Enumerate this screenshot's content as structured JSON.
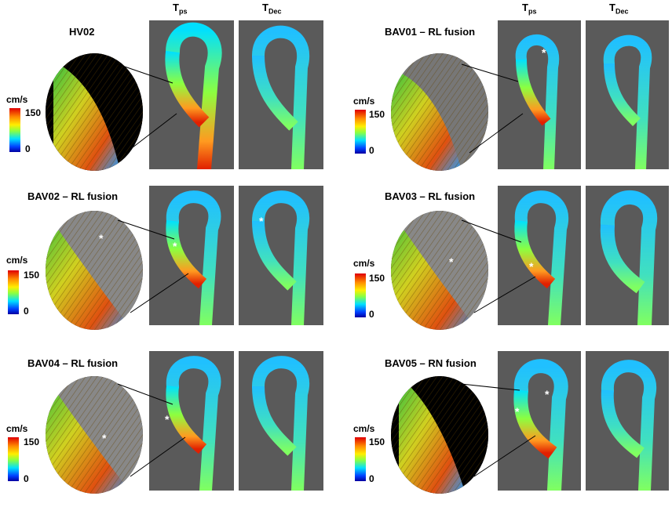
{
  "column_headers": {
    "left": {
      "a_main": "T",
      "a_sub": "ps",
      "b_main": "T",
      "b_sub": "Dec"
    },
    "right": {
      "a_main": "T",
      "a_sub": "ps",
      "b_main": "T",
      "b_sub": "Dec"
    }
  },
  "legend": {
    "unit": "cm/s",
    "max": "150",
    "min": "0"
  },
  "panels": [
    {
      "title": "HV02"
    },
    {
      "title": "BAV01 – RL fusion"
    },
    {
      "title": "BAV02 – RL fusion"
    },
    {
      "title": "BAV03 – RL fusion"
    },
    {
      "title": "BAV04 – RL fusion"
    },
    {
      "title": "BAV05 – RN fusion"
    }
  ],
  "colors": {
    "high": "#e00000",
    "mid": "#8cff40",
    "low": "#0000a0",
    "background": "#5a5a5a"
  }
}
